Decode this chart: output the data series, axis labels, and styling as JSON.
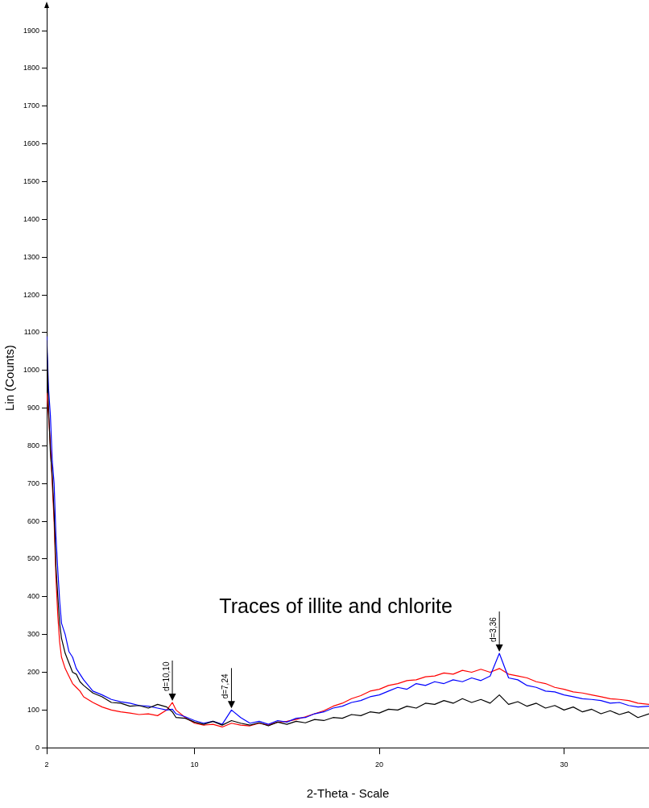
{
  "chart_data": {
    "type": "line",
    "xlabel": "2-Theta - Scale",
    "ylabel": "Lin (Counts)",
    "x": [
      2,
      2.1,
      2.2,
      2.3,
      2.4,
      2.5,
      2.6,
      2.7,
      2.8,
      3,
      3.2,
      3.4,
      3.6,
      3.8,
      4,
      4.5,
      5,
      5.5,
      6,
      6.5,
      7,
      7.5,
      8,
      8.5,
      8.8,
      9,
      9.5,
      10,
      10.5,
      11,
      11.5,
      12,
      12.5,
      13,
      13.5,
      14,
      14.5,
      15,
      15.5,
      16,
      16.5,
      17,
      17.5,
      18,
      18.5,
      19,
      19.5,
      20,
      20.5,
      21,
      21.5,
      22,
      22.5,
      23,
      23.5,
      24,
      24.5,
      25,
      25.5,
      26,
      26.5,
      27,
      27.5,
      28,
      28.5,
      29,
      29.5,
      30,
      30.5,
      31,
      31.5,
      32,
      32.5,
      33,
      33.5,
      34,
      34.6
    ],
    "series": [
      {
        "color": "#000000",
        "values": [
          1080,
          900,
          780,
          720,
          620,
          480,
          400,
          330,
          290,
          250,
          225,
          200,
          195,
          175,
          165,
          145,
          135,
          120,
          118,
          110,
          112,
          105,
          115,
          108,
          95,
          80,
          78,
          68,
          62,
          70,
          60,
          72,
          65,
          60,
          66,
          58,
          68,
          62,
          70,
          66,
          75,
          72,
          80,
          78,
          88,
          85,
          95,
          92,
          102,
          100,
          110,
          105,
          118,
          115,
          125,
          118,
          130,
          120,
          128,
          118,
          140,
          115,
          122,
          110,
          118,
          105,
          112,
          100,
          108,
          95,
          102,
          90,
          98,
          88,
          95,
          80,
          90
        ]
      },
      {
        "color": "#0000ff",
        "values": [
          1090,
          950,
          880,
          760,
          700,
          560,
          470,
          390,
          330,
          300,
          255,
          240,
          210,
          195,
          180,
          150,
          140,
          128,
          122,
          118,
          112,
          110,
          105,
          100,
          102,
          90,
          82,
          72,
          65,
          70,
          62,
          100,
          80,
          65,
          70,
          62,
          72,
          68,
          78,
          80,
          90,
          95,
          105,
          110,
          120,
          125,
          135,
          140,
          150,
          160,
          155,
          170,
          165,
          175,
          170,
          180,
          175,
          185,
          178,
          190,
          250,
          185,
          180,
          165,
          160,
          150,
          148,
          140,
          135,
          130,
          128,
          125,
          118,
          120,
          112,
          108,
          110
        ]
      },
      {
        "color": "#ff0000",
        "values": [
          940,
          880,
          800,
          700,
          600,
          450,
          350,
          280,
          240,
          210,
          190,
          170,
          160,
          150,
          135,
          120,
          108,
          100,
          95,
          92,
          88,
          90,
          85,
          100,
          120,
          100,
          80,
          65,
          60,
          62,
          55,
          65,
          60,
          58,
          65,
          60,
          68,
          70,
          75,
          82,
          90,
          98,
          110,
          118,
          130,
          138,
          150,
          155,
          165,
          170,
          178,
          180,
          188,
          190,
          198,
          195,
          205,
          200,
          208,
          200,
          210,
          195,
          190,
          185,
          175,
          170,
          160,
          155,
          148,
          145,
          140,
          135,
          130,
          128,
          125,
          118,
          115
        ]
      }
    ],
    "xlim": [
      2,
      34.6
    ],
    "xticks": [
      2,
      10,
      20,
      30
    ],
    "ylim": [
      0,
      1960
    ],
    "yticks": [
      0,
      100,
      200,
      300,
      400,
      500,
      600,
      700,
      800,
      900,
      1000,
      1100,
      1200,
      1300,
      1400,
      1500,
      1600,
      1700,
      1800,
      1900
    ],
    "annotations": [
      "Traces of illite and chlorite",
      {
        "text": "d=10,10",
        "x": 8.8,
        "y": 120
      },
      {
        "text": "d=7,24",
        "x": 12,
        "y": 100
      },
      {
        "text": "d=3,36",
        "x": 26.5,
        "y": 250
      }
    ],
    "grid": false,
    "legend": false,
    "marker": "none",
    "line_style": "solid"
  }
}
